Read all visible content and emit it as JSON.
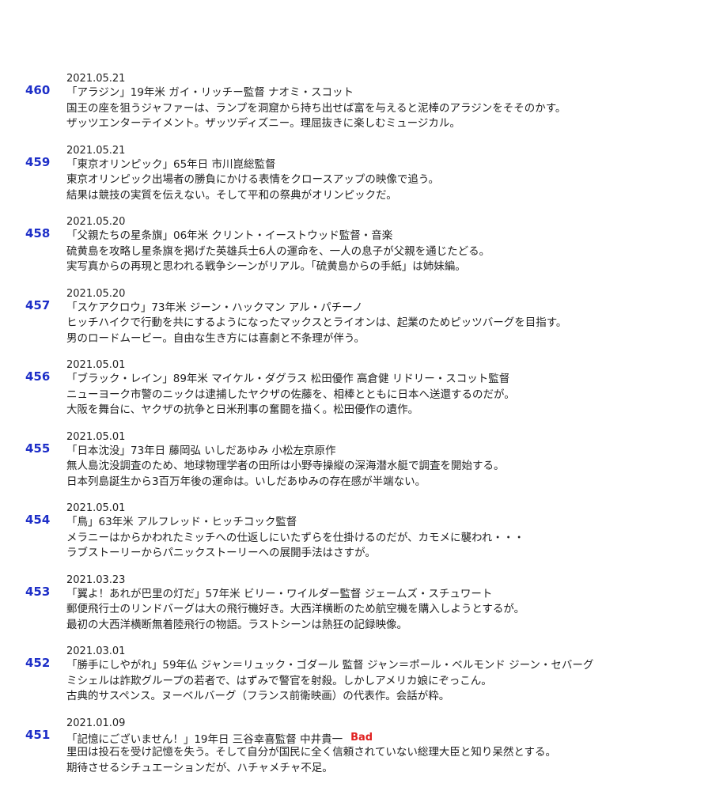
{
  "entries": [
    {
      "number": "460",
      "date": "2021.05.21",
      "lines": [
        "「アラジン」19年米 ガイ・リッチー監督 ナオミ・スコット",
        "国王の座を狙うジャファーは、ランプを洞窟から持ち出せば富を与えると泥棒のアラジンをそそのかす。",
        "ザッツエンターテイメント。ザッツディズニー。理屈抜きに楽しむミュージカル。"
      ]
    },
    {
      "number": "459",
      "date": "2021.05.21",
      "lines": [
        "「東京オリンピック」65年日 市川崑総監督",
        "東京オリンピック出場者の勝負にかける表情をクロースアップの映像で追う。",
        "結果は競技の実質を伝えない。そして平和の祭典がオリンピックだ。"
      ]
    },
    {
      "number": "458",
      "date": "2021.05.20",
      "lines": [
        "「父親たちの星条旗」06年米 クリント・イーストウッド監督・音楽",
        "硫黄島を攻略し星条旗を掲げた英雄兵士6人の運命を、一人の息子が父親を通じたどる。",
        "実写真からの再現と思われる戦争シーンがリアル。「硫黄島からの手紙」は姉妹編。"
      ]
    },
    {
      "number": "457",
      "date": "2021.05.20",
      "lines": [
        "「スケアクロウ」73年米 ジーン・ハックマン アル・パチーノ",
        "ヒッチハイクで行動を共にするようになったマックスとライオンは、起業のためピッツバーグを目指す。",
        "男のロードムービー。自由な生き方には喜劇と不条理が伴う。"
      ]
    },
    {
      "number": "456",
      "date": "2021.05.01",
      "lines": [
        "「ブラック・レイン」89年米 マイケル・ダグラス 松田優作 高倉健 リドリー・スコット監督",
        "ニューヨーク市警のニックは逮捕したヤクザの佐藤を、相棒とともに日本へ送還するのだが。",
        "大阪を舞台に、ヤクザの抗争と日米刑事の奮闘を描く。松田優作の遺作。"
      ]
    },
    {
      "number": "455",
      "date": "2021.05.01",
      "lines": [
        "「日本沈没」73年日 藤岡弘 いしだあゆみ 小松左京原作",
        "無人島沈没調査のため、地球物理学者の田所は小野寺操縦の深海潜水艇で調査を開始する。",
        "日本列島誕生から3百万年後の運命は。いしだあゆみの存在感が半端ない。"
      ]
    },
    {
      "number": "454",
      "date": "2021.05.01",
      "lines": [
        "「鳥」63年米 アルフレッド・ヒッチコック監督",
        "メラニーはからかわれたミッチへの仕返しにいたずらを仕掛けるのだが、カモメに襲われ・・・",
        "ラブストーリーからパニックストーリーへの展開手法はさすが。"
      ]
    },
    {
      "number": "453",
      "date": "2021.03.23",
      "lines": [
        "「翼よ！あれが巴里の灯だ」57年米 ビリー・ワイルダー監督 ジェームズ・スチュワート",
        "郵便飛行士のリンドバーグは大の飛行機好き。大西洋横断のため航空機を購入しようとするが。",
        "最初の大西洋横断無着陸飛行の物語。ラストシーンは熱狂の記録映像。"
      ]
    },
    {
      "number": "452",
      "date": "2021.03.01",
      "lines": [
        "「勝手にしやがれ」59年仏 ジャン＝リュック・ゴダール 監督 ジャン＝ポール・ベルモンド ジーン・セバーグ",
        "ミシェルは詐欺グループの若者で、はずみで警官を射殺。しかしアメリカ娘にぞっこん。",
        "古典的サスペンス。ヌーベルバーグ（フランス前衛映画）の代表作。会話が粋。"
      ]
    },
    {
      "number": "451",
      "date": "2021.01.09",
      "lines": [
        "「記憶にございません！」19年日 三谷幸喜監督 中井貴一",
        "里田は投石を受け記憶を失う。そして自分が国民に全く信頼されていない総理大臣と知り呆然とする。",
        "期待させるシチュエーションだが、ハチャメチャ不足。"
      ],
      "badge": "Bad"
    }
  ]
}
